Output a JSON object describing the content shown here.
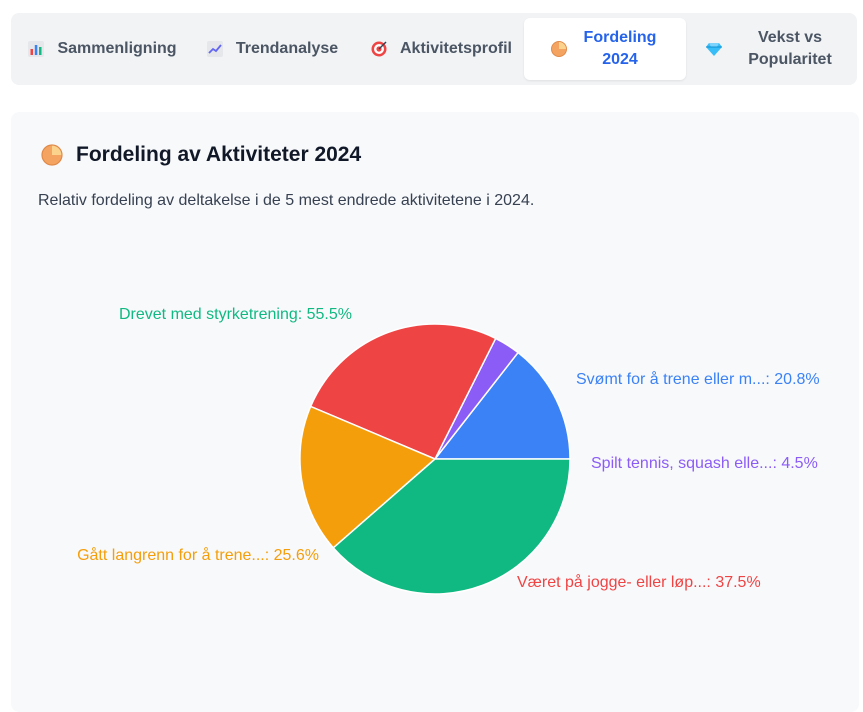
{
  "tabs": [
    {
      "label": "Sammenligning",
      "icon": "bar-chart-icon",
      "active": false
    },
    {
      "label": "Trendanalyse",
      "icon": "trend-chart-icon",
      "active": false
    },
    {
      "label": "Aktivitetsprofil",
      "icon": "target-icon",
      "active": false
    },
    {
      "label": "Fordeling 2024",
      "icon": "pie-chart-icon",
      "active": true
    },
    {
      "label": "Vekst vs Popularitet",
      "icon": "gem-icon",
      "active": false
    }
  ],
  "panel": {
    "title": "Fordeling av Aktiviteter 2024",
    "title_icon": "pie-chart-icon",
    "description": "Relativ fordeling av deltakelse i de 5 mest endrede aktivitetene i 2024."
  },
  "chart_data": {
    "type": "pie",
    "slices": [
      {
        "label": "Svømt for å trene eller m...: 20.8%",
        "value": 20.8,
        "color": "#3b82f6"
      },
      {
        "label": "Spilt tennis, squash elle...: 4.5%",
        "value": 4.5,
        "color": "#8b5cf6"
      },
      {
        "label": "Været på jogge- eller løp...: 37.5%",
        "value": 37.5,
        "color": "#ef4444"
      },
      {
        "label": "Gått langrenn for å trene...: 25.6%",
        "value": 25.6,
        "color": "#f59e0b"
      },
      {
        "label": "Drevet med styrketrening: 55.5%",
        "value": 55.5,
        "color": "#10b981"
      }
    ],
    "title": "",
    "legend": "none"
  }
}
